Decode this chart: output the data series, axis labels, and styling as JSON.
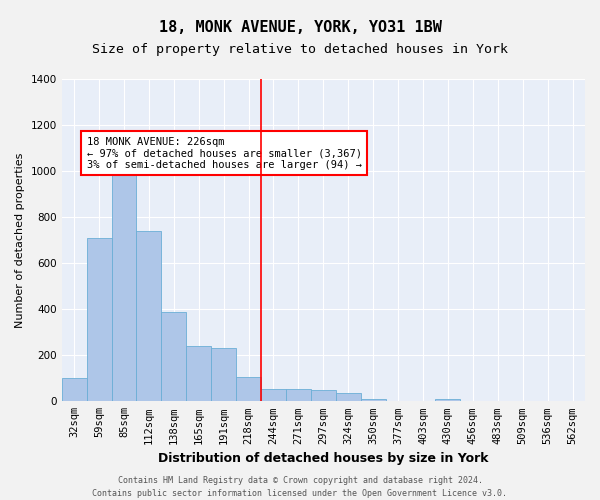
{
  "title": "18, MONK AVENUE, YORK, YO31 1BW",
  "subtitle": "Size of property relative to detached houses in York",
  "xlabel": "Distribution of detached houses by size in York",
  "ylabel": "Number of detached properties",
  "categories": [
    "32sqm",
    "59sqm",
    "85sqm",
    "112sqm",
    "138sqm",
    "165sqm",
    "191sqm",
    "218sqm",
    "244sqm",
    "271sqm",
    "297sqm",
    "324sqm",
    "350sqm",
    "377sqm",
    "403sqm",
    "430sqm",
    "456sqm",
    "483sqm",
    "509sqm",
    "536sqm",
    "562sqm"
  ],
  "values": [
    100,
    710,
    1050,
    740,
    390,
    240,
    230,
    105,
    55,
    55,
    50,
    38,
    10,
    0,
    0,
    10,
    0,
    0,
    0,
    0,
    0
  ],
  "bar_color": "#aec6e8",
  "bar_edge_color": "#6baed6",
  "vline_x": 7.5,
  "vline_color": "red",
  "annotation_text": "18 MONK AVENUE: 226sqm\n← 97% of detached houses are smaller (3,367)\n3% of semi-detached houses are larger (94) →",
  "annotation_box_color": "red",
  "ylim": [
    0,
    1400
  ],
  "yticks": [
    0,
    200,
    400,
    600,
    800,
    1000,
    1200,
    1400
  ],
  "footer_line1": "Contains HM Land Registry data © Crown copyright and database right 2024.",
  "footer_line2": "Contains public sector information licensed under the Open Government Licence v3.0.",
  "bg_color": "#e8eef8",
  "fig_bg_color": "#f2f2f2",
  "grid_color": "#ffffff",
  "title_fontsize": 11,
  "subtitle_fontsize": 9.5,
  "tick_fontsize": 7.5,
  "ylabel_fontsize": 8,
  "xlabel_fontsize": 9,
  "annotation_fontsize": 7.5,
  "footer_fontsize": 6
}
